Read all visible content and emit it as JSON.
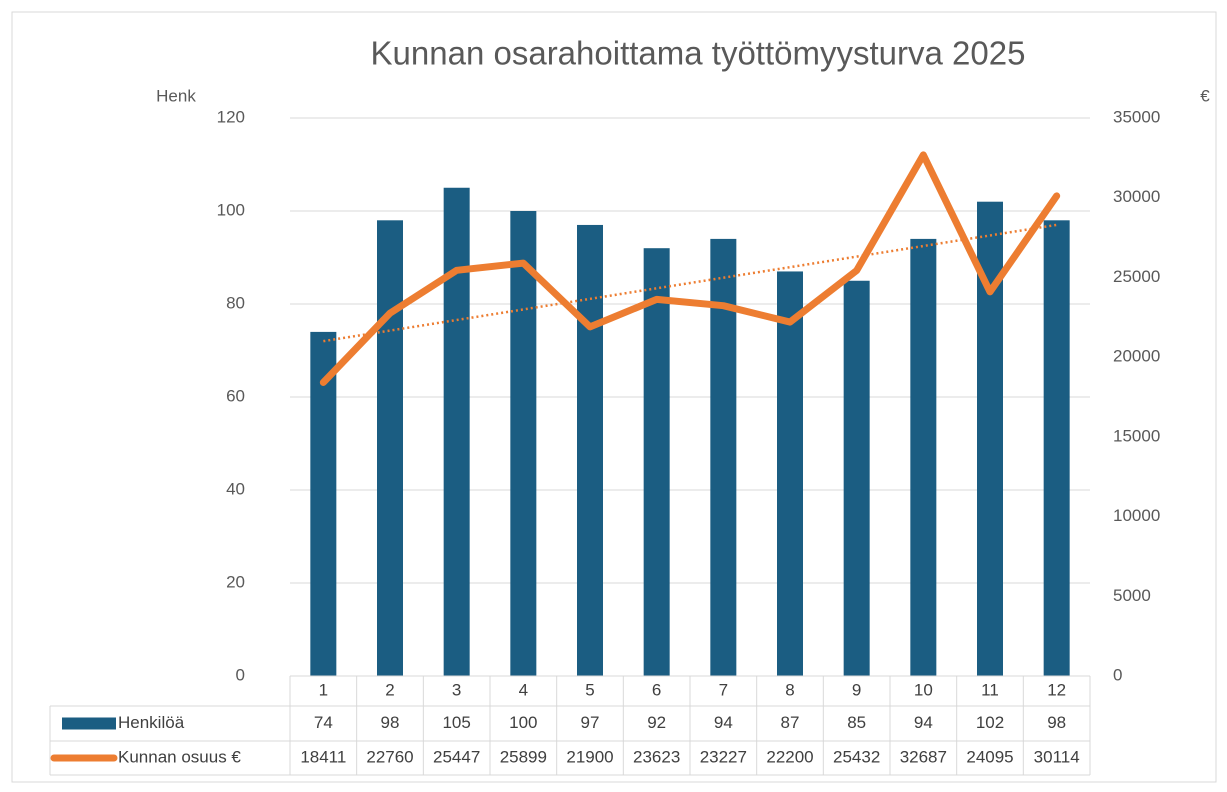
{
  "chart_data": {
    "type": "combo",
    "title": "Kunnan osarahoittama työttömyysturva 2025",
    "y_label": "Henk",
    "y2_label": "€",
    "categories": [
      "1",
      "2",
      "3",
      "4",
      "5",
      "6",
      "7",
      "8",
      "9",
      "10",
      "11",
      "12"
    ],
    "series": [
      {
        "name": "Henkilöä",
        "type": "bar",
        "color": "#1b5d82",
        "values": [
          74,
          98,
          105,
          100,
          97,
          92,
          94,
          87,
          85,
          94,
          102,
          98
        ]
      },
      {
        "name": "Kunnan osuus €",
        "type": "line",
        "axis": "y2",
        "color": "#ed7d31",
        "trendline": true,
        "values": [
          18411,
          22760,
          25447,
          25899,
          21900,
          23623,
          23227,
          22200,
          25432,
          32687,
          24095,
          30114
        ]
      }
    ],
    "ylim": [
      0,
      120
    ],
    "yticks": [
      0,
      20,
      40,
      60,
      80,
      100,
      120
    ],
    "y2lim": [
      0,
      35000
    ],
    "y2ticks": [
      0,
      5000,
      10000,
      15000,
      20000,
      25000,
      30000,
      35000
    ],
    "grid": true,
    "data_table": true
  }
}
